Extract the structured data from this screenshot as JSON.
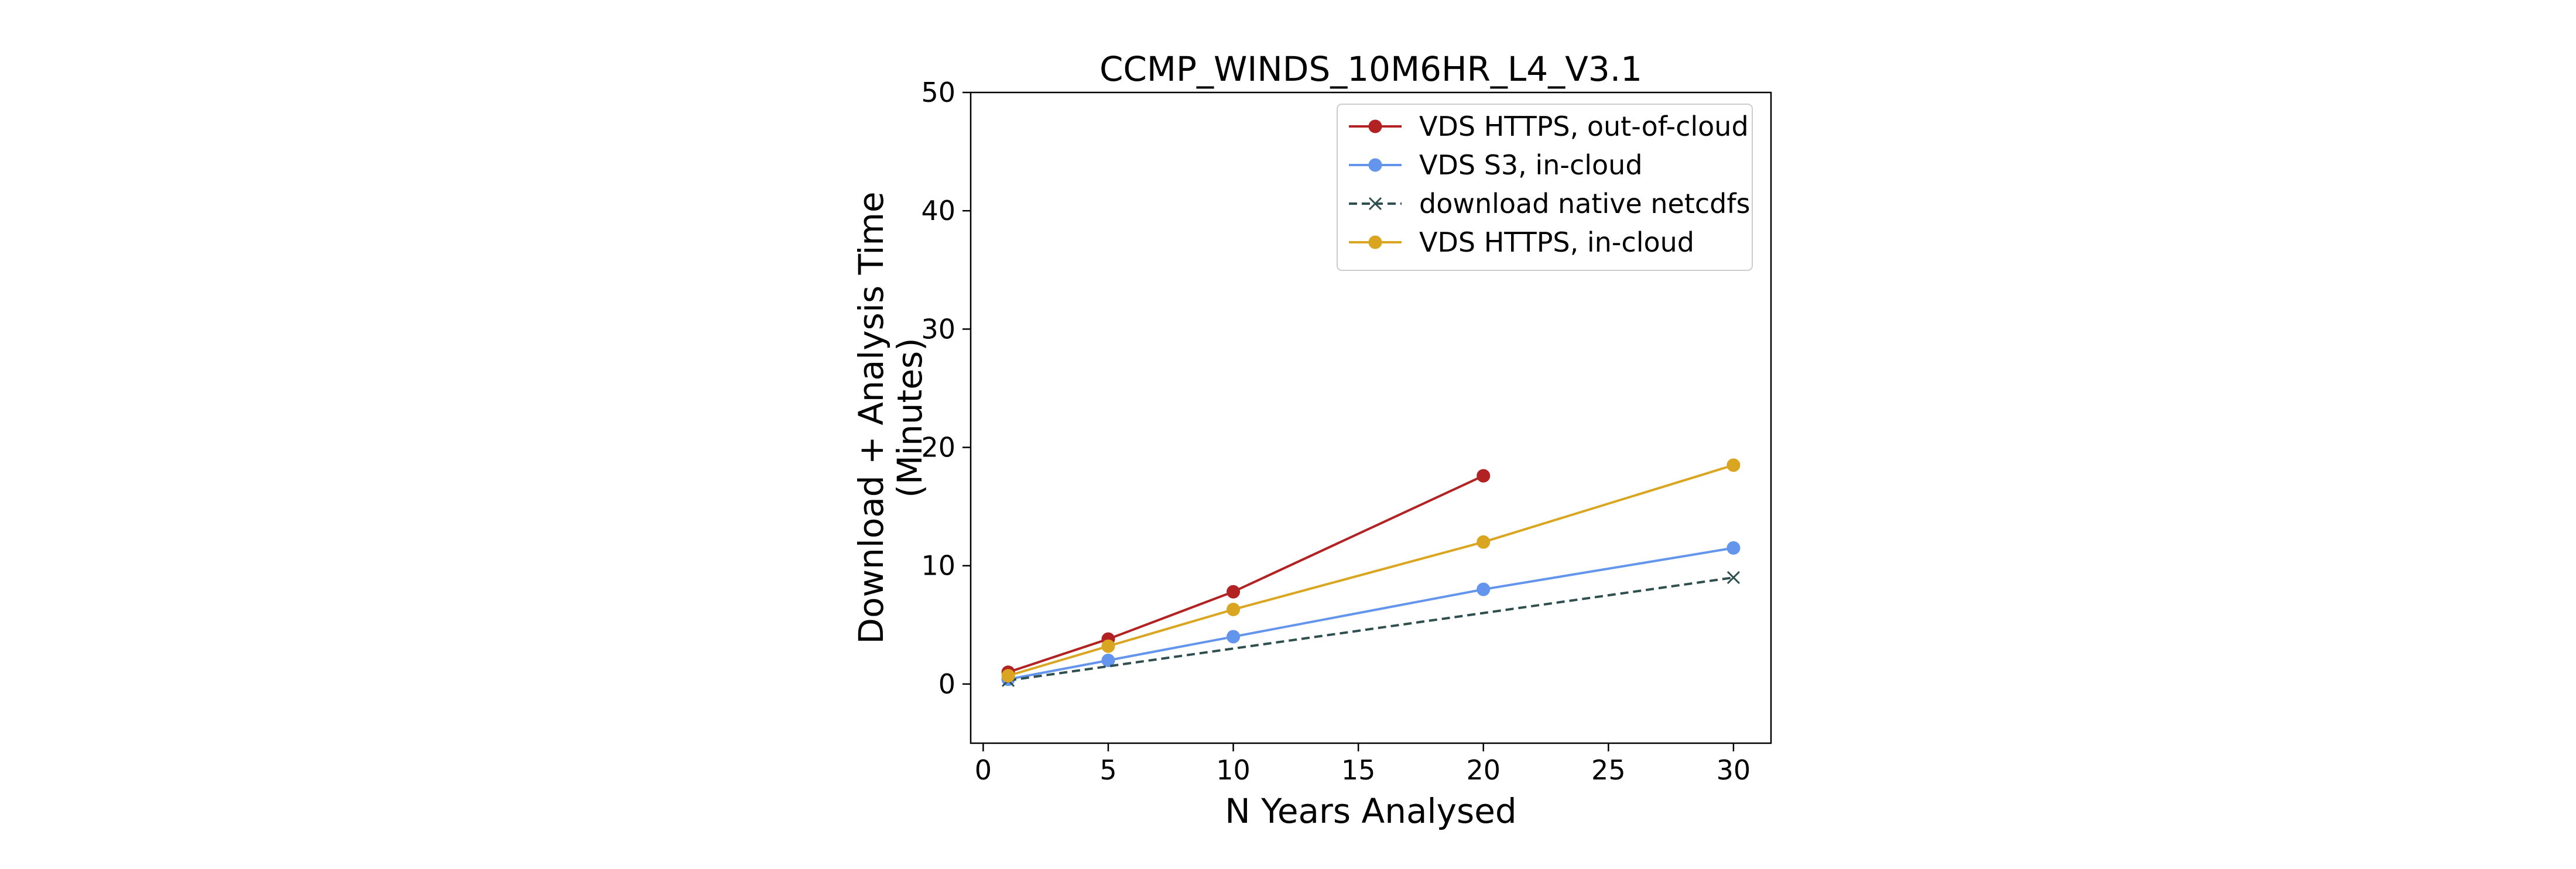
{
  "chart_data": {
    "type": "line",
    "title": "CCMP_WINDS_10M6HR_L4_V3.1",
    "xlabel": "N Years Analysed",
    "ylabel": [
      "Download + Analysis Time",
      "(Minutes)"
    ],
    "xlim": [
      -0.5,
      31.5
    ],
    "ylim": [
      -5,
      50
    ],
    "xticks": [
      0,
      5,
      10,
      15,
      20,
      25,
      30
    ],
    "yticks": [
      0,
      10,
      20,
      30,
      40,
      50
    ],
    "grid": false,
    "legend_position": "top-right",
    "series": [
      {
        "name": "VDS HTTPS, out-of-cloud",
        "color": "#b22222",
        "marker": "circle",
        "line_style": "solid",
        "x": [
          1,
          5,
          10,
          20
        ],
        "y": [
          1.0,
          3.8,
          7.8,
          17.6
        ]
      },
      {
        "name": "VDS S3, in-cloud",
        "color": "#6495ed",
        "marker": "circle",
        "line_style": "solid",
        "x": [
          1,
          5,
          10,
          20,
          30
        ],
        "y": [
          0.4,
          2.0,
          4.0,
          8.0,
          11.5
        ]
      },
      {
        "name": "download native netcdfs",
        "color": "#2f4f4f",
        "marker": "x",
        "line_style": "dashed",
        "x": [
          1,
          30
        ],
        "y": [
          0.3,
          9.0
        ]
      },
      {
        "name": "VDS HTTPS, in-cloud",
        "color": "#daa520",
        "marker": "circle",
        "line_style": "solid",
        "x": [
          1,
          5,
          10,
          20,
          30
        ],
        "y": [
          0.7,
          3.2,
          6.3,
          12.0,
          18.5
        ]
      }
    ]
  }
}
